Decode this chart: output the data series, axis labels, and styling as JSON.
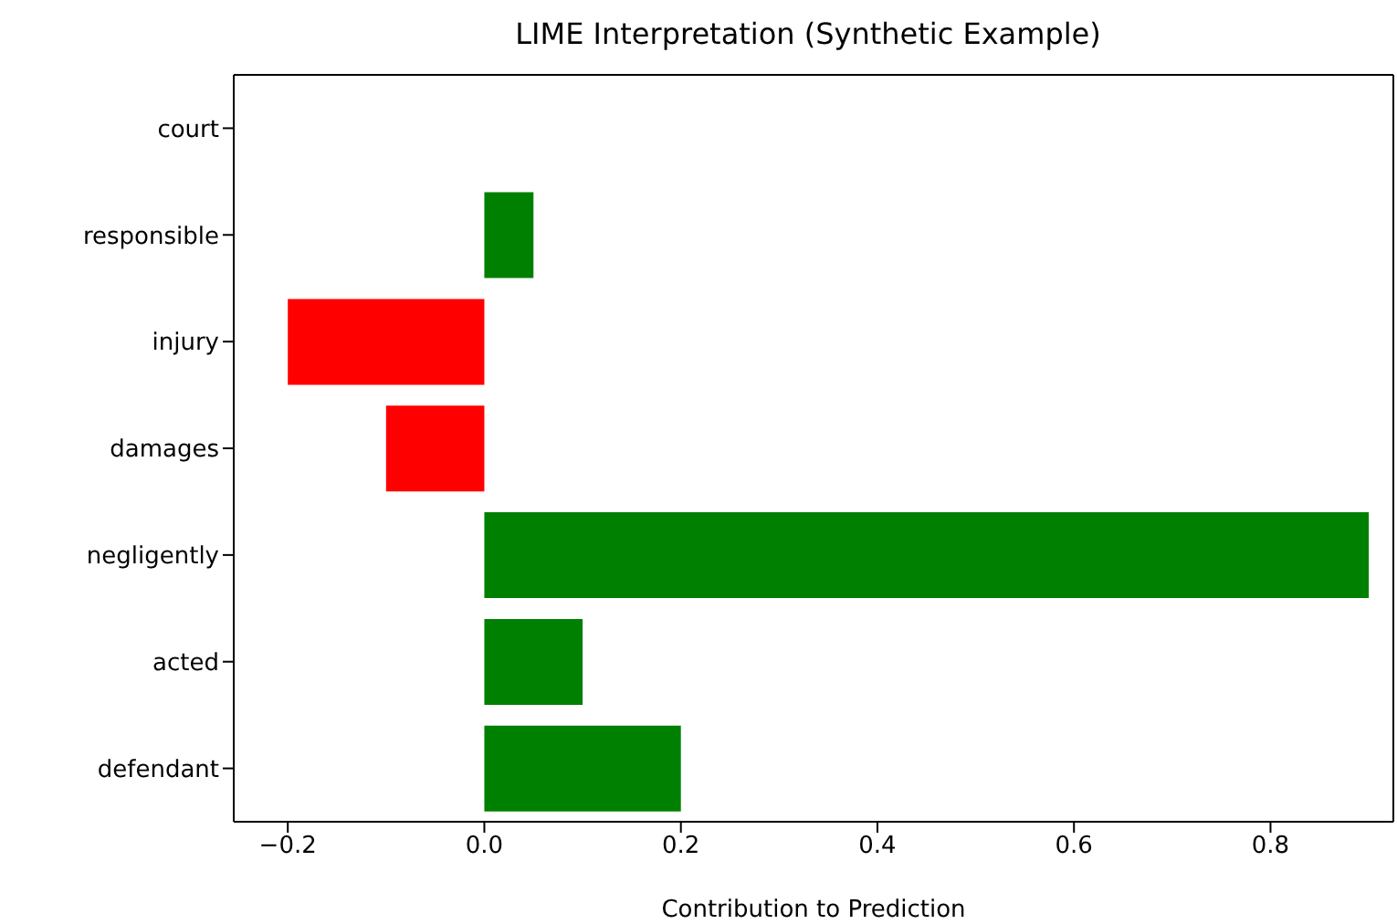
{
  "chart_data": {
    "type": "bar",
    "orientation": "horizontal",
    "title": "LIME Interpretation (Synthetic Example)",
    "xlabel": "Contribution to Prediction",
    "categories": [
      "court",
      "responsible",
      "injury",
      "damages",
      "negligently",
      "acted",
      "defendant"
    ],
    "values": [
      0,
      0.05,
      -0.2,
      -0.1,
      0.9,
      0.1,
      0.2
    ],
    "colors": [
      "#008000",
      "#008000",
      "#ff0000",
      "#ff0000",
      "#008000",
      "#008000",
      "#008000"
    ],
    "xlim": [
      -0.255,
      0.925
    ],
    "xticks": [
      {
        "value": -0.2,
        "label": "−0.2"
      },
      {
        "value": 0,
        "label": "0.0"
      },
      {
        "value": 0.2,
        "label": "0.2"
      },
      {
        "value": 0.4,
        "label": "0.4"
      },
      {
        "value": 0.6,
        "label": "0.6"
      },
      {
        "value": 0.8,
        "label": "0.8"
      }
    ]
  }
}
